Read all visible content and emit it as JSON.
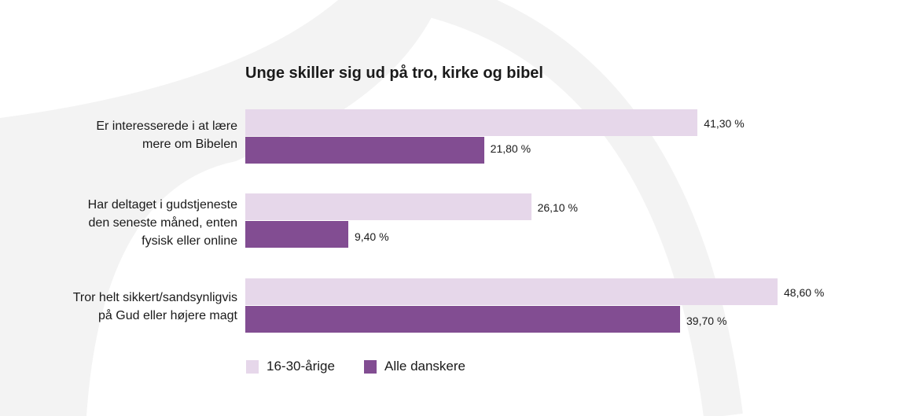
{
  "colors": {
    "series1": "#e6d7ea",
    "series2": "#824d92",
    "decoration": "#f3f3f3"
  },
  "chart_data": {
    "type": "bar",
    "orientation": "horizontal",
    "title": "Unge skiller sig ud på tro, kirke og bibel",
    "categories": [
      [
        "Er interesserede i at lære",
        "mere om Bibelen"
      ],
      [
        "Har deltaget i gudstjeneste",
        "den seneste måned, enten",
        "fysisk eller online"
      ],
      [
        "Tror helt sikkert/sandsynligvis",
        "på Gud eller højere magt"
      ]
    ],
    "series": [
      {
        "name": "16-30-årige",
        "values": [
          41.3,
          26.1,
          48.6
        ],
        "labels": [
          "41,30 %",
          "26,10 %",
          "48,60 %"
        ]
      },
      {
        "name": "Alle danskere",
        "values": [
          21.8,
          9.4,
          39.7
        ],
        "labels": [
          "21,80 %",
          "9,40 %",
          "39,70 %"
        ]
      }
    ],
    "xlim": [
      0,
      60
    ],
    "grid": false,
    "legend": "bottom-left",
    "data_labels": true
  }
}
